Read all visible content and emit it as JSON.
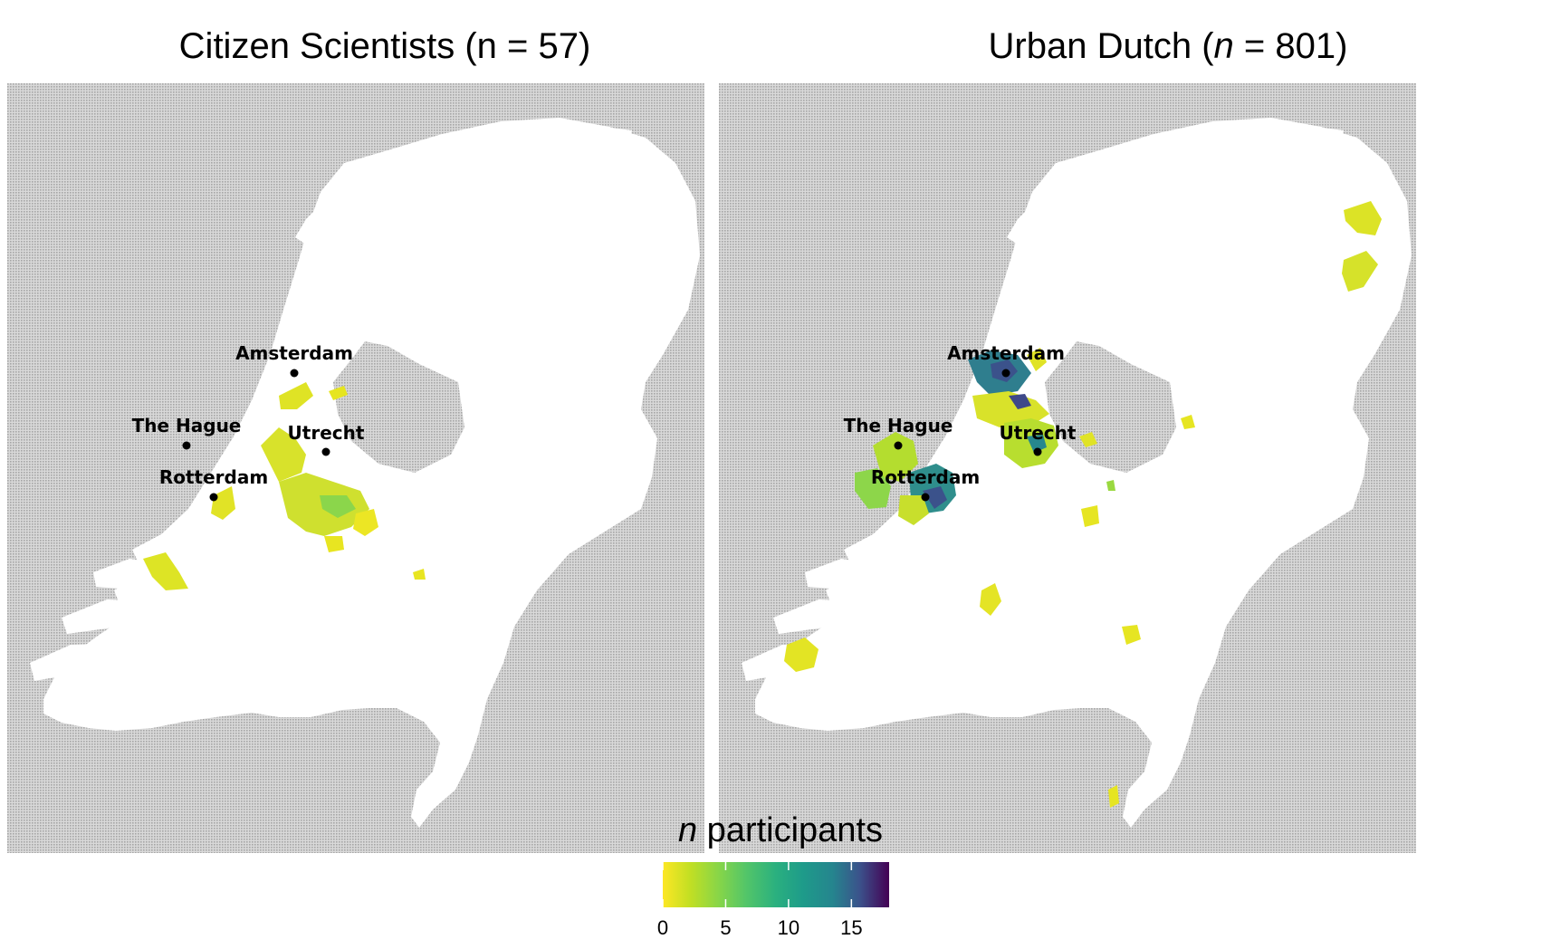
{
  "colors": {
    "sea": "#bfbfbf",
    "land": "#ffffff",
    "city_dot": "#000000",
    "scale": [
      "#fde725",
      "#b5de2b",
      "#6ece58",
      "#35b779",
      "#1f9e89",
      "#26828e",
      "#31688e",
      "#3e4989",
      "#482878",
      "#440154"
    ]
  },
  "panels": [
    {
      "title_main": "Citizen Scientists (n = 57)",
      "title_prefix": "",
      "title_italic": "",
      "title_suffix": "",
      "cities": [
        {
          "name": "Amsterdam"
        },
        {
          "name": "The Hague"
        },
        {
          "name": "Utrecht"
        },
        {
          "name": "Rotterdam"
        }
      ]
    },
    {
      "title_main": "",
      "title_prefix": "Urban Dutch (",
      "title_italic": "n",
      "title_suffix": " = 801)",
      "cities": [
        {
          "name": "Amsterdam"
        },
        {
          "name": "The Hague"
        },
        {
          "name": "Utrecht"
        },
        {
          "name": "Rotterdam"
        }
      ]
    }
  ],
  "legend": {
    "title_italic": "n",
    "title_rest": " participants",
    "ticks": [
      {
        "value": 0,
        "label": "0"
      },
      {
        "value": 5,
        "label": "5"
      },
      {
        "value": 10,
        "label": "10"
      },
      {
        "value": 15,
        "label": "15"
      }
    ],
    "range": [
      0,
      18
    ]
  }
}
